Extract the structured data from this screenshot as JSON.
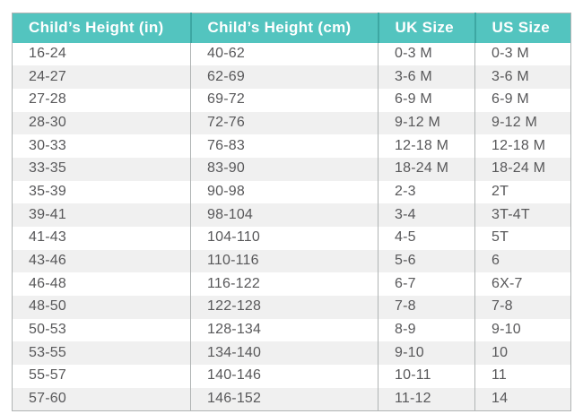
{
  "page": {
    "title": "Child clothing size conversion chart"
  },
  "colors": {
    "header_bg": "#53c4bf",
    "header_divider": "#3da7a3",
    "header_text": "#ffffff",
    "body_text": "#58585a",
    "row_alt_bg": "#f0f0f0",
    "border": "#b0b4b4"
  },
  "table": {
    "columns": [
      "Child’s Height (in)",
      "Child’s Height (cm)",
      "UK Size",
      "US Size"
    ],
    "rows": [
      [
        "16-24",
        "40-62",
        "0-3 M",
        "0-3 M"
      ],
      [
        "24-27",
        "62-69",
        "3-6 M",
        "3-6 M"
      ],
      [
        "27-28",
        "69-72",
        "6-9 M",
        "6-9 M"
      ],
      [
        "28-30",
        "72-76",
        "9-12 M",
        "9-12 M"
      ],
      [
        "30-33",
        "76-83",
        "12-18 M",
        "12-18 M"
      ],
      [
        "33-35",
        "83-90",
        "18-24 M",
        "18-24 M"
      ],
      [
        "35-39",
        "90-98",
        "2-3",
        "2T"
      ],
      [
        "39-41",
        "98-104",
        "3-4",
        "3T-4T"
      ],
      [
        "41-43",
        "104-110",
        "4-5",
        "5T"
      ],
      [
        "43-46",
        "110-116",
        "5-6",
        "6"
      ],
      [
        "46-48",
        "116-122",
        "6-7",
        "6X-7"
      ],
      [
        "48-50",
        "122-128",
        "7-8",
        "7-8"
      ],
      [
        "50-53",
        "128-134",
        "8-9",
        "9-10"
      ],
      [
        "53-55",
        "134-140",
        "9-10",
        "10"
      ],
      [
        "55-57",
        "140-146",
        "10-11",
        "11"
      ],
      [
        "57-60",
        "146-152",
        "11-12",
        "14"
      ]
    ]
  },
  "chart_data": {
    "type": "table",
    "title": "Child’s height to UK / US clothing size conversion",
    "columns": [
      "Child’s Height (in)",
      "Child’s Height (cm)",
      "UK Size",
      "US Size"
    ],
    "rows": [
      [
        "16-24",
        "40-62",
        "0-3 M",
        "0-3 M"
      ],
      [
        "24-27",
        "62-69",
        "3-6 M",
        "3-6 M"
      ],
      [
        "27-28",
        "69-72",
        "6-9 M",
        "6-9 M"
      ],
      [
        "28-30",
        "72-76",
        "9-12 M",
        "9-12 M"
      ],
      [
        "30-33",
        "76-83",
        "12-18 M",
        "12-18 M"
      ],
      [
        "33-35",
        "83-90",
        "18-24 M",
        "18-24 M"
      ],
      [
        "35-39",
        "90-98",
        "2-3",
        "2T"
      ],
      [
        "39-41",
        "98-104",
        "3-4",
        "3T-4T"
      ],
      [
        "41-43",
        "104-110",
        "4-5",
        "5T"
      ],
      [
        "43-46",
        "110-116",
        "5-6",
        "6"
      ],
      [
        "46-48",
        "116-122",
        "6-7",
        "6X-7"
      ],
      [
        "48-50",
        "122-128",
        "7-8",
        "7-8"
      ],
      [
        "50-53",
        "128-134",
        "8-9",
        "9-10"
      ],
      [
        "53-55",
        "134-140",
        "9-10",
        "10"
      ],
      [
        "55-57",
        "140-146",
        "10-11",
        "11"
      ],
      [
        "57-60",
        "146-152",
        "11-12",
        "14"
      ]
    ],
    "layout": {
      "header_position": "top",
      "row_striping": true,
      "vertical_gridlines": true,
      "horizontal_gridlines": false
    }
  }
}
